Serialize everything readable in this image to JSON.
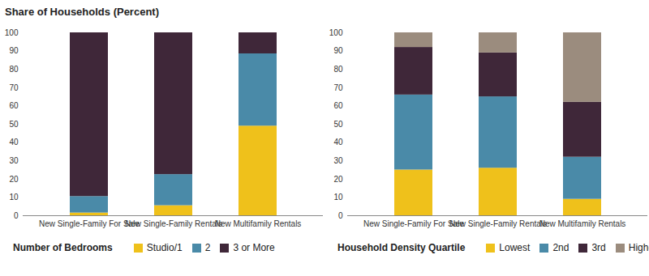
{
  "chart_data": [
    {
      "type": "bar",
      "stacked": true,
      "title": "Share of Households (Percent)",
      "categories": [
        "New Single-Family For Sale",
        "New Single-Family Rentals",
        "New Multifamily Rentals"
      ],
      "series": [
        {
          "name": "Studio/1",
          "color": "#efc11b",
          "values": [
            1.5,
            5.5,
            49
          ]
        },
        {
          "name": "2",
          "color": "#4a8aa8",
          "values": [
            9,
            17,
            39.5
          ]
        },
        {
          "name": "3 or More",
          "color": "#3f2739",
          "values": [
            89.5,
            77.5,
            11.5
          ]
        }
      ],
      "legend_title": "Number of Bedrooms",
      "legend": "bottom",
      "ylim": [
        0,
        100
      ],
      "yticks": [
        0,
        10,
        20,
        30,
        40,
        50,
        60,
        70,
        80,
        90,
        100
      ],
      "grid": false
    },
    {
      "type": "bar",
      "stacked": true,
      "categories": [
        "New Single-Family For Sale",
        "New Single-Family Rentals",
        "New Multifamily Rentals"
      ],
      "series": [
        {
          "name": "Lowest",
          "color": "#efc11b",
          "values": [
            25,
            26,
            9
          ]
        },
        {
          "name": "2nd",
          "color": "#4a8aa8",
          "values": [
            41,
            39,
            23
          ]
        },
        {
          "name": "3rd",
          "color": "#3f2739",
          "values": [
            26,
            24,
            30
          ]
        },
        {
          "name": "Highest",
          "color": "#9b8c7e",
          "values": [
            8,
            11,
            38
          ]
        }
      ],
      "legend_title": "Household Density Quartile",
      "legend": "bottom",
      "ylim": [
        0,
        100
      ],
      "yticks": [
        0,
        10,
        20,
        30,
        40,
        50,
        60,
        70,
        80,
        90,
        100
      ],
      "grid": false
    }
  ]
}
